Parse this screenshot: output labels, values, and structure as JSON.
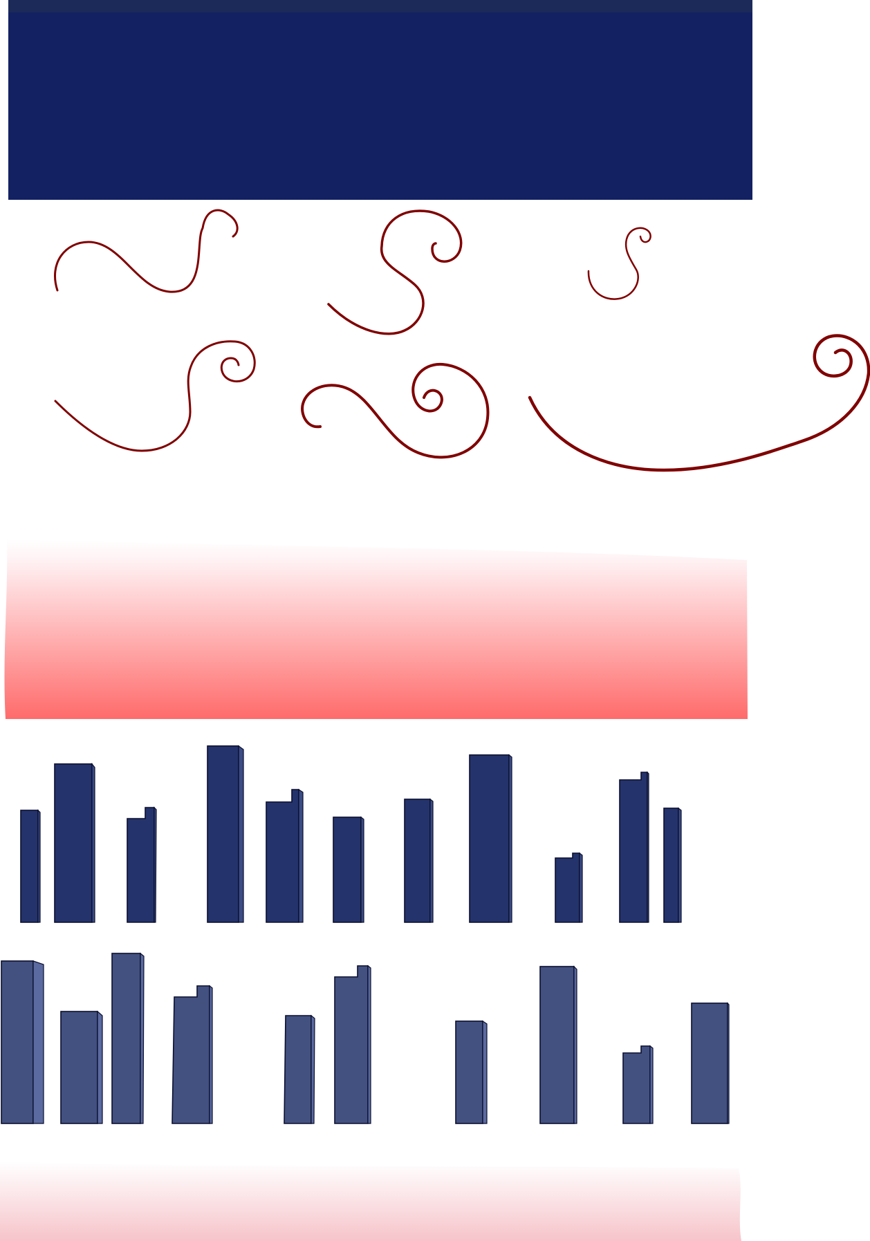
{
  "colors": {
    "banner": "#132163",
    "banner_top": "#1c2a5a",
    "swirl": "#800000",
    "fade_strong": "#ff6b6b",
    "fade_light": "#f6c2c8",
    "bars_row1": "#24336b",
    "bars_row1_side": "#3b4c86",
    "bars_row2": "#435181",
    "bars_row2_side": "#5b6aa0"
  },
  "icons": [
    "swirl-ornament",
    "city-skyline-bars"
  ]
}
